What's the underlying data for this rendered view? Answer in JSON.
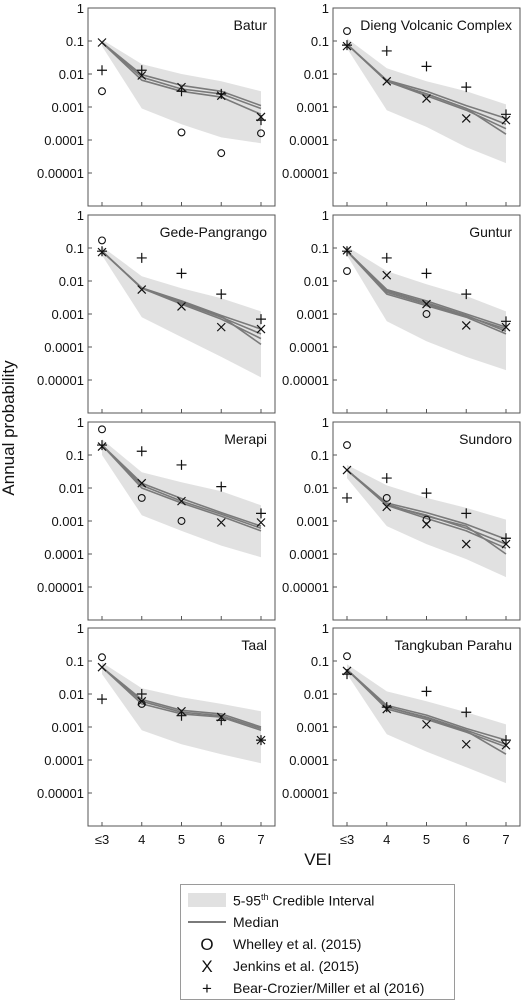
{
  "figure": {
    "y_axis_label": "Annual probability",
    "x_axis_label": "VEI",
    "y_tick_labels": [
      "1",
      "0.1",
      "0.01",
      "0.001",
      "0.0001",
      "0.00001"
    ],
    "x_tick_labels": [
      "≤3",
      "4",
      "5",
      "6",
      "7"
    ]
  },
  "legend": {
    "band_label": "5-95",
    "band_label_sup": "th",
    "band_label_rest": " Credible Interval",
    "median_label": "Median",
    "whelley_label": "Whelley et al. (2015)",
    "jenkins_label": "Jenkins et al. (2015)",
    "bear_label": "Bear-Crozier/Miller et al (2016)",
    "whelley_symbol": "O",
    "jenkins_symbol": "X",
    "bear_symbol": "+"
  },
  "colors": {
    "band": "#e1e1e1",
    "median": "#7a7a7a",
    "markers": "#111111",
    "frame": "#555555"
  },
  "chart_data": [
    {
      "type": "line",
      "title": "Batur",
      "x": [
        "≤3",
        "4",
        "5",
        "6",
        "7"
      ],
      "yscale": "log",
      "ylim": [
        1e-06,
        1
      ],
      "band_lower": [
        0.07,
        0.0009,
        0.0003,
        0.00012,
        8e-05
      ],
      "band_upper": [
        0.11,
        0.02,
        0.01,
        0.006,
        0.003
      ],
      "medians": [
        [
          0.09,
          0.008,
          0.0035,
          0.0025,
          0.0009
        ],
        [
          0.09,
          0.0065,
          0.003,
          0.002,
          0.0006
        ],
        [
          0.09,
          0.0095,
          0.0045,
          0.003,
          0.0011
        ]
      ],
      "series": [
        {
          "name": "Whelley et al. (2015)",
          "values": [
            0.003,
            null,
            0.00017,
            4e-05,
            0.00016
          ]
        },
        {
          "name": "Jenkins et al. (2015)",
          "values": [
            0.09,
            0.009,
            0.004,
            0.0022,
            0.0005
          ]
        },
        {
          "name": "Bear-Crozier/Miller et al (2016)",
          "values": [
            0.013,
            0.013,
            0.003,
            0.0025,
            0.0004
          ]
        }
      ]
    },
    {
      "type": "line",
      "title": "Dieng Volcanic Complex",
      "x": [
        "≤3",
        "4",
        "5",
        "6",
        "7"
      ],
      "yscale": "log",
      "ylim": [
        1e-06,
        1
      ],
      "band_lower": [
        0.06,
        0.0008,
        0.00025,
        6e-05,
        2e-05
      ],
      "band_upper": [
        0.12,
        0.015,
        0.006,
        0.003,
        0.0012
      ],
      "medians": [
        [
          0.08,
          0.006,
          0.0025,
          0.0009,
          0.0003
        ],
        [
          0.08,
          0.006,
          0.0022,
          0.0008,
          0.00022
        ],
        [
          0.08,
          0.0065,
          0.003,
          0.0011,
          0.00045
        ],
        [
          0.08,
          0.006,
          0.0025,
          0.0009,
          0.00015
        ]
      ],
      "series": [
        {
          "name": "Whelley et al. (2015)",
          "values": [
            0.2,
            null,
            null,
            null,
            null
          ]
        },
        {
          "name": "Jenkins et al. (2015)",
          "values": [
            0.07,
            0.006,
            0.0018,
            0.00045,
            0.0004
          ]
        },
        {
          "name": "Bear-Crozier/Miller et al (2016)",
          "values": [
            0.075,
            0.05,
            0.017,
            0.004,
            0.0006
          ]
        }
      ]
    },
    {
      "type": "line",
      "title": "Gede-Pangrango",
      "x": [
        "≤3",
        "4",
        "5",
        "6",
        "7"
      ],
      "yscale": "log",
      "ylim": [
        1e-06,
        1
      ],
      "band_lower": [
        0.06,
        0.0008,
        0.0002,
        5e-05,
        1.2e-05
      ],
      "band_upper": [
        0.11,
        0.014,
        0.006,
        0.003,
        0.0012
      ],
      "medians": [
        [
          0.08,
          0.006,
          0.0022,
          0.0008,
          0.00025
        ],
        [
          0.08,
          0.006,
          0.002,
          0.0007,
          0.00018
        ],
        [
          0.08,
          0.0062,
          0.0025,
          0.0009,
          0.00035
        ],
        [
          0.08,
          0.006,
          0.0023,
          0.00085,
          0.00012
        ]
      ],
      "series": [
        {
          "name": "Whelley et al. (2015)",
          "values": [
            0.17,
            null,
            null,
            null,
            null
          ]
        },
        {
          "name": "Jenkins et al. (2015)",
          "values": [
            0.075,
            0.0055,
            0.0017,
            0.0004,
            0.00035
          ]
        },
        {
          "name": "Bear-Crozier/Miller et al (2016)",
          "values": [
            0.08,
            0.05,
            0.017,
            0.004,
            0.0007
          ]
        }
      ]
    },
    {
      "type": "line",
      "title": "Guntur",
      "x": [
        "≤3",
        "4",
        "5",
        "6",
        "7"
      ],
      "yscale": "log",
      "ylim": [
        1e-06,
        1
      ],
      "band_lower": [
        0.06,
        0.0006,
        0.00015,
        5e-05,
        2e-05
      ],
      "band_upper": [
        0.11,
        0.02,
        0.008,
        0.0035,
        0.0012
      ],
      "medians": [
        [
          0.08,
          0.005,
          0.0022,
          0.0009,
          0.0003
        ],
        [
          0.08,
          0.004,
          0.0018,
          0.0008,
          0.00025
        ],
        [
          0.08,
          0.0055,
          0.0025,
          0.001,
          0.0004
        ],
        [
          0.08,
          0.0045,
          0.002,
          0.00085,
          0.00035
        ]
      ],
      "series": [
        {
          "name": "Whelley et al. (2015)",
          "values": [
            0.02,
            null,
            0.001,
            null,
            null
          ]
        },
        {
          "name": "Jenkins et al. (2015)",
          "values": [
            0.085,
            0.015,
            0.002,
            0.00045,
            0.0004
          ]
        },
        {
          "name": "Bear-Crozier/Miller et al (2016)",
          "values": [
            0.08,
            0.05,
            0.017,
            0.004,
            0.0006
          ]
        }
      ]
    },
    {
      "type": "line",
      "title": "Merapi",
      "x": [
        "≤3",
        "4",
        "5",
        "6",
        "7"
      ],
      "yscale": "log",
      "ylim": [
        1e-06,
        1
      ],
      "band_lower": [
        0.1,
        0.0015,
        0.0005,
        0.00018,
        8e-05
      ],
      "band_upper": [
        0.3,
        0.03,
        0.015,
        0.008,
        0.003
      ],
      "medians": [
        [
          0.2,
          0.012,
          0.004,
          0.0016,
          0.0006
        ],
        [
          0.2,
          0.01,
          0.0035,
          0.0014,
          0.0005
        ],
        [
          0.2,
          0.014,
          0.0048,
          0.0018,
          0.0007
        ]
      ],
      "series": [
        {
          "name": "Whelley et al. (2015)",
          "values": [
            0.6,
            0.005,
            0.001,
            null,
            null
          ]
        },
        {
          "name": "Jenkins et al. (2015)",
          "values": [
            0.18,
            0.014,
            0.004,
            0.0009,
            0.0009
          ]
        },
        {
          "name": "Bear-Crozier/Miller et al (2016)",
          "values": [
            0.2,
            0.13,
            0.05,
            0.011,
            0.0017
          ]
        }
      ]
    },
    {
      "type": "line",
      "title": "Sundoro",
      "x": [
        "≤3",
        "4",
        "5",
        "6",
        "7"
      ],
      "yscale": "log",
      "ylim": [
        1e-06,
        1
      ],
      "band_lower": [
        0.02,
        0.0007,
        0.0002,
        7e-05,
        2e-05
      ],
      "band_upper": [
        0.05,
        0.012,
        0.005,
        0.0025,
        0.0011
      ],
      "medians": [
        [
          0.035,
          0.003,
          0.0015,
          0.0006,
          0.0002
        ],
        [
          0.035,
          0.003,
          0.0012,
          0.0005,
          0.00015
        ],
        [
          0.035,
          0.0035,
          0.0018,
          0.0008,
          0.00028
        ],
        [
          0.035,
          0.0032,
          0.0014,
          0.0007,
          0.0001
        ]
      ],
      "series": [
        {
          "name": "Whelley et al. (2015)",
          "values": [
            0.2,
            0.005,
            0.0011,
            null,
            null
          ]
        },
        {
          "name": "Jenkins et al. (2015)",
          "values": [
            0.035,
            0.0027,
            0.0008,
            0.0002,
            0.0002
          ]
        },
        {
          "name": "Bear-Crozier/Miller et al (2016)",
          "values": [
            0.005,
            0.02,
            0.007,
            0.0017,
            0.0003
          ]
        }
      ]
    },
    {
      "type": "line",
      "title": "Taal",
      "x": [
        "≤3",
        "4",
        "5",
        "6",
        "7"
      ],
      "yscale": "log",
      "ylim": [
        1e-06,
        1
      ],
      "band_lower": [
        0.04,
        0.0008,
        0.0003,
        0.00015,
        8e-05
      ],
      "band_upper": [
        0.09,
        0.015,
        0.008,
        0.005,
        0.003
      ],
      "medians": [
        [
          0.065,
          0.006,
          0.0028,
          0.0022,
          0.0009
        ],
        [
          0.065,
          0.005,
          0.0025,
          0.002,
          0.0008
        ],
        [
          0.065,
          0.0068,
          0.0032,
          0.0025,
          0.001
        ]
      ],
      "series": [
        {
          "name": "Whelley et al. (2015)",
          "values": [
            0.13,
            0.005,
            null,
            null,
            null
          ]
        },
        {
          "name": "Jenkins et al. (2015)",
          "values": [
            0.065,
            0.006,
            0.003,
            0.002,
            0.0004
          ]
        },
        {
          "name": "Bear-Crozier/Miller et al (2016)",
          "values": [
            0.007,
            0.01,
            0.0022,
            0.0016,
            0.0004
          ]
        }
      ]
    },
    {
      "type": "line",
      "title": "Tangkuban Parahu",
      "x": [
        "≤3",
        "4",
        "5",
        "6",
        "7"
      ],
      "yscale": "log",
      "ylim": [
        1e-06,
        1
      ],
      "band_lower": [
        0.04,
        0.0006,
        0.00018,
        6e-05,
        2e-05
      ],
      "band_upper": [
        0.08,
        0.012,
        0.006,
        0.0028,
        0.0012
      ],
      "medians": [
        [
          0.055,
          0.004,
          0.002,
          0.0008,
          0.0003
        ],
        [
          0.055,
          0.0035,
          0.0017,
          0.0007,
          0.00025
        ],
        [
          0.055,
          0.0045,
          0.0023,
          0.0009,
          0.0004
        ],
        [
          0.055,
          0.004,
          0.0019,
          0.00075,
          0.00015
        ]
      ],
      "series": [
        {
          "name": "Whelley et al. (2015)",
          "values": [
            0.14,
            null,
            null,
            null,
            null
          ]
        },
        {
          "name": "Jenkins et al. (2015)",
          "values": [
            0.05,
            0.0035,
            0.0012,
            0.0003,
            0.00028
          ]
        },
        {
          "name": "Bear-Crozier/Miller et al (2016)",
          "values": [
            0.04,
            0.004,
            0.012,
            0.0028,
            0.0004
          ]
        }
      ]
    }
  ]
}
